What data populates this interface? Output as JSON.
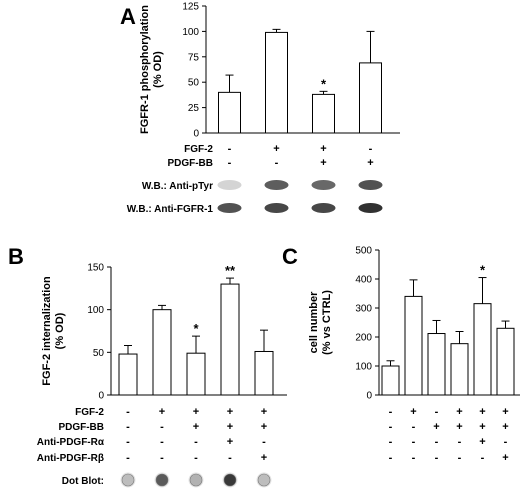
{
  "chart_data": [
    {
      "panel": "A",
      "type": "bar",
      "ylabel_lines": [
        "FGFR-1 phosphorylation",
        "(% OD)"
      ],
      "ylim": [
        0,
        125
      ],
      "yticks": [
        0,
        25,
        50,
        75,
        100,
        125
      ],
      "values": [
        40,
        99,
        38,
        69
      ],
      "errors": [
        17,
        3,
        3,
        31
      ],
      "significance": [
        "",
        "",
        "*",
        ""
      ],
      "conditions": [
        {
          "label": "FGF-2",
          "signs": [
            "-",
            "+",
            "+",
            "-"
          ]
        },
        {
          "label": "PDGF-BB",
          "signs": [
            "-",
            "-",
            "+",
            "+"
          ]
        }
      ],
      "blots": [
        {
          "label": "W.B.: Anti-pTyr",
          "intensity": [
            0.2,
            0.75,
            0.7,
            0.8
          ]
        },
        {
          "label": "W.B.: Anti-FGFR-1",
          "intensity": [
            0.8,
            0.85,
            0.85,
            0.95
          ]
        }
      ]
    },
    {
      "panel": "B",
      "type": "bar",
      "ylabel_lines": [
        "FGF-2 internalization",
        "(% OD)"
      ],
      "ylim": [
        0,
        150
      ],
      "yticks": [
        0,
        50,
        100,
        150
      ],
      "values": [
        48,
        100,
        49,
        130,
        51
      ],
      "errors": [
        10,
        5,
        20,
        7,
        25
      ],
      "significance": [
        "",
        "",
        "*",
        "**",
        ""
      ],
      "conditions": [
        {
          "label": "FGF-2",
          "signs": [
            "-",
            "+",
            "+",
            "+",
            "+"
          ]
        },
        {
          "label": "PDGF-BB",
          "signs": [
            "-",
            "-",
            "+",
            "+",
            "+"
          ]
        },
        {
          "label": "Anti-PDGF-Rα",
          "signs": [
            "-",
            "-",
            "-",
            "+",
            "-"
          ]
        },
        {
          "label": "Anti-PDGF-Rβ",
          "signs": [
            "-",
            "-",
            "-",
            "-",
            "+"
          ]
        }
      ],
      "dots": {
        "label": "Dot Blot:",
        "intensity": [
          0.3,
          0.75,
          0.35,
          0.9,
          0.3
        ]
      }
    },
    {
      "panel": "C",
      "type": "bar",
      "ylabel_lines": [
        "cell number",
        "(% vs CTRL)"
      ],
      "ylim": [
        0,
        500
      ],
      "yticks": [
        0,
        100,
        200,
        300,
        400,
        500
      ],
      "values": [
        100,
        340,
        212,
        177,
        315,
        230
      ],
      "errors": [
        18,
        57,
        45,
        42,
        90,
        25
      ],
      "significance": [
        "",
        "",
        "",
        "",
        "*",
        ""
      ],
      "conditions": [
        {
          "signs": [
            "-",
            "+",
            "-",
            "+",
            "+",
            "+"
          ]
        },
        {
          "signs": [
            "-",
            "-",
            "+",
            "+",
            "+",
            "+"
          ]
        },
        {
          "signs": [
            "-",
            "-",
            "-",
            "-",
            "+",
            "-"
          ]
        },
        {
          "signs": [
            "-",
            "-",
            "-",
            "-",
            "-",
            "+"
          ]
        }
      ]
    }
  ]
}
